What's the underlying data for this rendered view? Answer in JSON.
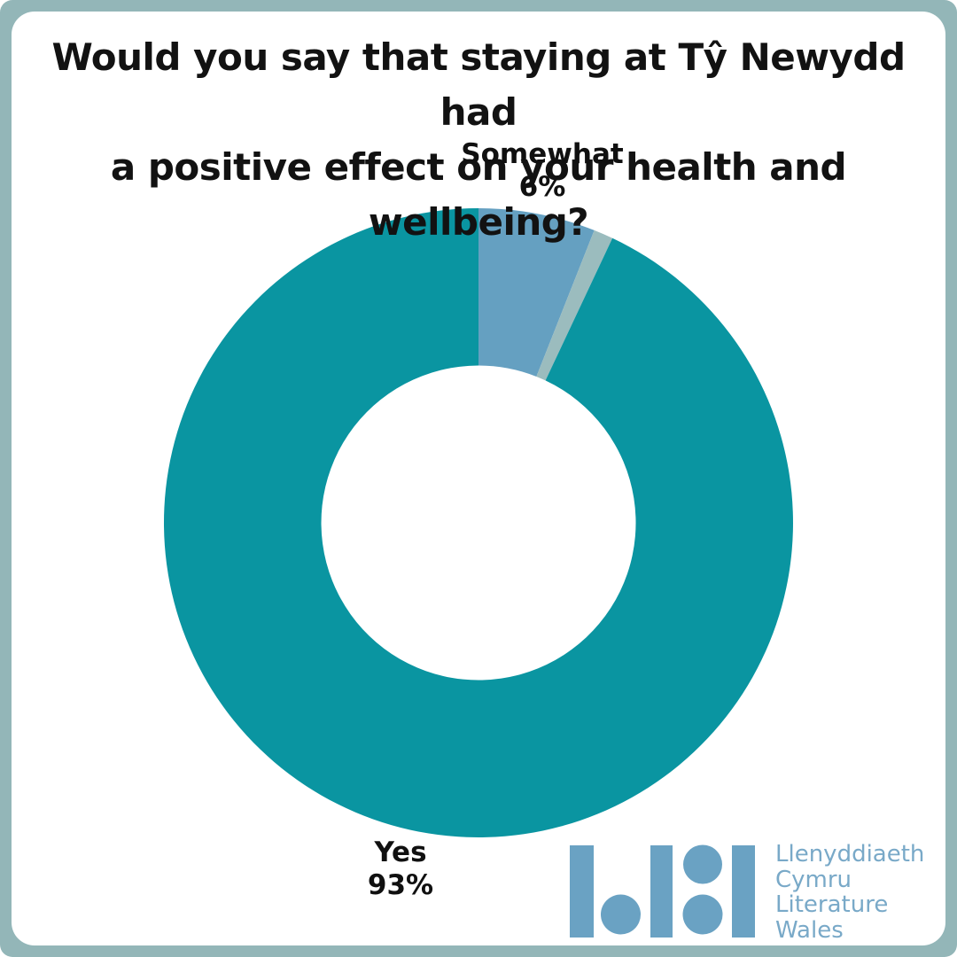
{
  "colors": {
    "frame_border": "#93b6b8",
    "canvas_background": "#ffffff",
    "title_text": "#121212",
    "label_text": "#101010"
  },
  "title": {
    "line1": "Would you say that staying at Tŷ Newydd had",
    "line2": "a positive effect on your health and wellbeing?"
  },
  "chart_data": {
    "type": "donut",
    "title": "Would you say that staying at Tŷ Newydd had a positive effect on your health and wellbeing?",
    "unit": "percent",
    "start_angle_deg": 0,
    "direction": "clockwise",
    "inner_radius_ratio": 0.5,
    "legend": "none",
    "slices": [
      {
        "label": "Somewhat",
        "value": 6,
        "display": "6%",
        "color": "#65a0c1"
      },
      {
        "label": "",
        "value": 1,
        "display": "",
        "color": "#9bbcbe"
      },
      {
        "label": "Yes",
        "value": 93,
        "display": "93%",
        "color": "#0a95a1"
      }
    ]
  },
  "logo": {
    "name": "Llenyddiaeth Cymru Literature Wales",
    "glyph_color": "#6aa2c3",
    "text_color": "#79a9c8",
    "lines": [
      "Llenyddiaeth",
      "Cymru",
      "Literature",
      "Wales"
    ]
  }
}
